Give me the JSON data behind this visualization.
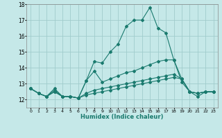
{
  "xlabel": "Humidex (Indice chaleur)",
  "background_color": "#c5e8e8",
  "grid_color": "#a0cccc",
  "line_color": "#1a7a6e",
  "ylim": [
    11.5,
    18.0
  ],
  "xlim": [
    -0.5,
    23.5
  ],
  "yticks": [
    12,
    13,
    14,
    15,
    16,
    17,
    18
  ],
  "xtick_labels": [
    "0",
    "1",
    "2",
    "3",
    "4",
    "5",
    "6",
    "7",
    "8",
    "9",
    "10",
    "11",
    "12",
    "13",
    "14",
    "15",
    "16",
    "17",
    "18",
    "19",
    "20",
    "21",
    "22",
    "23"
  ],
  "series": [
    [
      12.7,
      12.4,
      12.2,
      12.7,
      12.2,
      12.2,
      12.1,
      13.2,
      14.4,
      14.3,
      15.0,
      15.5,
      16.6,
      17.0,
      17.0,
      17.8,
      16.5,
      16.2,
      14.5,
      13.1,
      12.5,
      12.2,
      12.5,
      12.5
    ],
    [
      12.7,
      12.4,
      12.2,
      12.6,
      12.2,
      12.2,
      12.1,
      13.2,
      13.8,
      13.1,
      13.3,
      13.5,
      13.7,
      13.8,
      14.0,
      14.2,
      14.4,
      14.5,
      14.5,
      13.3,
      12.5,
      12.4,
      12.5,
      12.5
    ],
    [
      12.7,
      12.4,
      12.2,
      12.5,
      12.2,
      12.2,
      12.1,
      12.4,
      12.6,
      12.7,
      12.8,
      12.9,
      13.0,
      13.1,
      13.2,
      13.3,
      13.4,
      13.5,
      13.6,
      13.3,
      12.5,
      12.4,
      12.5,
      12.5
    ],
    [
      12.7,
      12.4,
      12.2,
      12.5,
      12.2,
      12.2,
      12.1,
      12.3,
      12.4,
      12.5,
      12.6,
      12.7,
      12.8,
      12.9,
      13.0,
      13.1,
      13.2,
      13.3,
      13.4,
      13.3,
      12.5,
      12.4,
      12.5,
      12.5
    ]
  ]
}
